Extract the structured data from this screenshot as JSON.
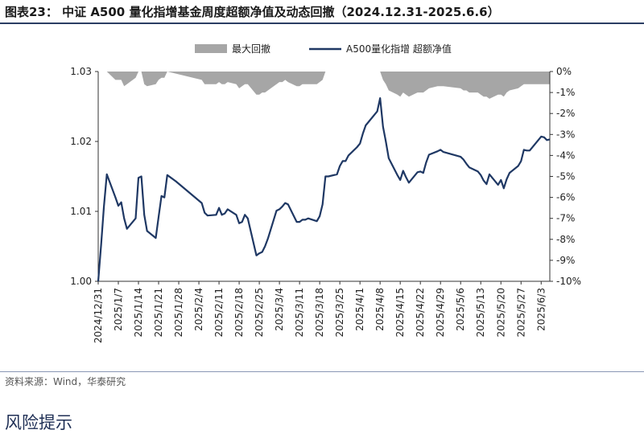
{
  "header": {
    "title": "图表23： 中证 A500 量化指增基金周度超额净值及动态回撤（2024.12.31-2025.6.6）"
  },
  "footer": {
    "source": "资料来源：Wind，华泰研究",
    "section_heading": "风险提示"
  },
  "colors": {
    "line": "#1f3864",
    "area": "#a6a6a6",
    "axis": "#333333",
    "rule": "#2b3d63"
  },
  "chart_data": {
    "type": "line",
    "legend_position": "top",
    "x_ticks": [
      "2024/12/31",
      "2025/1/7",
      "2025/1/14",
      "2025/1/21",
      "2025/1/28",
      "2025/2/4",
      "2025/2/11",
      "2025/2/18",
      "2025/2/25",
      "2025/3/4",
      "2025/3/11",
      "2025/3/18",
      "2025/3/25",
      "2025/4/1",
      "2025/4/8",
      "2025/4/15",
      "2025/4/22",
      "2025/4/29",
      "2025/5/6",
      "2025/5/13",
      "2025/5/20",
      "2025/5/27",
      "2025/6/3"
    ],
    "y_left": {
      "ticks": [
        "1.00",
        "1.01",
        "1.02",
        "1.03"
      ],
      "range": [
        1.0,
        1.03
      ]
    },
    "y_right": {
      "ticks": [
        "0%",
        "-1%",
        "-2%",
        "-3%",
        "-4%",
        "-5%",
        "-6%",
        "-7%",
        "-8%",
        "-9%",
        "-10%"
      ],
      "range": [
        -10,
        0
      ]
    },
    "series": [
      {
        "name": "A500量化指增 超额净值",
        "axis": "left",
        "x": [
          "2024/12/31",
          "2025/1/1",
          "2025/1/2",
          "2025/1/3",
          "2025/1/6",
          "2025/1/7",
          "2025/1/8",
          "2025/1/9",
          "2025/1/10",
          "2025/1/13",
          "2025/1/14",
          "2025/1/15",
          "2025/1/16",
          "2025/1/17",
          "2025/1/20",
          "2025/1/21",
          "2025/1/22",
          "2025/1/23",
          "2025/1/24",
          "2025/1/27",
          "2025/2/5",
          "2025/2/6",
          "2025/2/7",
          "2025/2/10",
          "2025/2/11",
          "2025/2/12",
          "2025/2/13",
          "2025/2/14",
          "2025/2/17",
          "2025/2/18",
          "2025/2/19",
          "2025/2/20",
          "2025/2/21",
          "2025/2/24",
          "2025/2/25",
          "2025/2/26",
          "2025/2/27",
          "2025/2/28",
          "2025/3/3",
          "2025/3/4",
          "2025/3/5",
          "2025/3/6",
          "2025/3/7",
          "2025/3/10",
          "2025/3/11",
          "2025/3/12",
          "2025/3/13",
          "2025/3/14",
          "2025/3/17",
          "2025/3/18",
          "2025/3/19",
          "2025/3/20",
          "2025/3/21",
          "2025/3/24",
          "2025/3/25",
          "2025/3/26",
          "2025/3/27",
          "2025/3/28",
          "2025/3/31",
          "2025/4/1",
          "2025/4/2",
          "2025/4/3",
          "2025/4/7",
          "2025/4/8",
          "2025/4/9",
          "2025/4/10",
          "2025/4/11",
          "2025/4/14",
          "2025/4/15",
          "2025/4/16",
          "2025/4/17",
          "2025/4/18",
          "2025/4/21",
          "2025/4/22",
          "2025/4/23",
          "2025/4/24",
          "2025/4/25",
          "2025/4/28",
          "2025/4/29",
          "2025/4/30",
          "2025/5/6",
          "2025/5/7",
          "2025/5/8",
          "2025/5/9",
          "2025/5/12",
          "2025/5/13",
          "2025/5/14",
          "2025/5/15",
          "2025/5/16",
          "2025/5/19",
          "2025/5/20",
          "2025/5/21",
          "2025/5/22",
          "2025/5/23",
          "2025/5/26",
          "2025/5/27",
          "2025/5/28",
          "2025/5/29",
          "2025/5/30",
          "2025/6/3",
          "2025/6/4",
          "2025/6/5",
          "2025/6/6"
        ],
        "y": [
          1.0,
          1.0052,
          1.0107,
          1.0153,
          1.012,
          1.0108,
          1.0113,
          1.009,
          1.0075,
          1.009,
          1.0148,
          1.015,
          1.0095,
          1.0072,
          1.0062,
          1.0092,
          1.0122,
          1.012,
          1.0152,
          1.0143,
          1.0112,
          1.0098,
          1.0094,
          1.0095,
          1.0105,
          1.0095,
          1.0097,
          1.0103,
          1.0095,
          1.0083,
          1.0085,
          1.0095,
          1.009,
          1.0037,
          1.004,
          1.0042,
          1.005,
          1.0061,
          1.0101,
          1.0103,
          1.0107,
          1.0112,
          1.011,
          1.0085,
          1.0085,
          1.0088,
          1.0088,
          1.009,
          1.0086,
          1.0093,
          1.011,
          1.015,
          1.015,
          1.0153,
          1.0165,
          1.0172,
          1.0172,
          1.018,
          1.0192,
          1.0197,
          1.0211,
          1.0223,
          1.0243,
          1.0262,
          1.0221,
          1.02,
          1.0176,
          1.0152,
          1.0145,
          1.0158,
          1.0149,
          1.0141,
          1.0156,
          1.0157,
          1.0155,
          1.017,
          1.0181,
          1.0186,
          1.0188,
          1.0185,
          1.0178,
          1.0174,
          1.0168,
          1.0163,
          1.0157,
          1.0152,
          1.0144,
          1.0139,
          1.0153,
          1.0138,
          1.0145,
          1.0133,
          1.0146,
          1.0155,
          1.0165,
          1.0172,
          1.0188,
          1.0187,
          1.0187,
          1.0207,
          1.0206,
          1.0202,
          1.0203
        ],
        "color": "#1f3864"
      },
      {
        "name": "最大回撤",
        "axis": "right",
        "type": "area",
        "x": [
          "2024/12/31",
          "2025/1/3",
          "2025/1/6",
          "2025/1/7",
          "2025/1/8",
          "2025/1/9",
          "2025/1/10",
          "2025/1/13",
          "2025/1/14",
          "2025/1/15",
          "2025/1/16",
          "2025/1/17",
          "2025/1/20",
          "2025/1/21",
          "2025/1/22",
          "2025/1/23",
          "2025/1/24",
          "2025/1/27",
          "2025/2/5",
          "2025/2/6",
          "2025/2/7",
          "2025/2/10",
          "2025/2/11",
          "2025/2/12",
          "2025/2/13",
          "2025/2/14",
          "2025/2/17",
          "2025/2/18",
          "2025/2/19",
          "2025/2/20",
          "2025/2/21",
          "2025/2/24",
          "2025/2/25",
          "2025/2/26",
          "2025/2/27",
          "2025/2/28",
          "2025/3/3",
          "2025/3/4",
          "2025/3/5",
          "2025/3/6",
          "2025/3/7",
          "2025/3/10",
          "2025/3/11",
          "2025/3/12",
          "2025/3/13",
          "2025/3/14",
          "2025/3/17",
          "2025/3/18",
          "2025/3/19",
          "2025/3/20",
          "2025/3/21",
          "2025/3/24",
          "2025/3/25",
          "2025/3/26",
          "2025/3/27",
          "2025/3/28",
          "2025/3/31",
          "2025/4/1",
          "2025/4/2",
          "2025/4/3",
          "2025/4/7",
          "2025/4/8",
          "2025/4/9",
          "2025/4/10",
          "2025/4/11",
          "2025/4/14",
          "2025/4/15",
          "2025/4/16",
          "2025/4/17",
          "2025/4/18",
          "2025/4/21",
          "2025/4/22",
          "2025/4/23",
          "2025/4/24",
          "2025/4/25",
          "2025/4/28",
          "2025/4/29",
          "2025/4/30",
          "2025/5/6",
          "2025/5/7",
          "2025/5/8",
          "2025/5/9",
          "2025/5/12",
          "2025/5/13",
          "2025/5/14",
          "2025/5/15",
          "2025/5/16",
          "2025/5/19",
          "2025/5/20",
          "2025/5/21",
          "2025/5/22",
          "2025/5/23",
          "2025/5/26",
          "2025/5/27",
          "2025/5/28",
          "2025/5/29",
          "2025/5/30",
          "2025/6/3",
          "2025/6/4",
          "2025/6/5",
          "2025/6/6"
        ],
        "y": [
          0,
          0,
          -0.4,
          -0.4,
          -0.4,
          -0.7,
          -0.6,
          -0.3,
          0,
          0,
          -0.6,
          -0.7,
          -0.6,
          -0.4,
          -0.3,
          -0.3,
          0,
          -0.1,
          -0.4,
          -0.6,
          -0.6,
          -0.6,
          -0.5,
          -0.6,
          -0.6,
          -0.5,
          -0.6,
          -0.8,
          -0.7,
          -0.6,
          -0.6,
          -1.1,
          -1.1,
          -1.0,
          -1.0,
          -0.9,
          -0.6,
          -0.5,
          -0.5,
          -0.4,
          -0.5,
          -0.7,
          -0.7,
          -0.6,
          -0.6,
          -0.6,
          -0.6,
          -0.5,
          -0.4,
          0,
          0,
          0,
          0,
          0,
          0,
          0,
          0,
          0,
          0,
          0,
          0,
          0,
          -0.4,
          -0.6,
          -0.9,
          -1.1,
          -1.2,
          -1.0,
          -1.1,
          -1.2,
          -1.0,
          -1.0,
          -1.0,
          -0.9,
          -0.8,
          -0.7,
          -0.7,
          -0.7,
          -0.8,
          -0.9,
          -0.9,
          -1.0,
          -1.0,
          -1.1,
          -1.2,
          -1.2,
          -1.3,
          -1.1,
          -1.1,
          -1.2,
          -1.0,
          -0.9,
          -0.8,
          -0.7,
          -0.6,
          -0.6,
          -0.6,
          -0.6,
          -0.6,
          -0.6,
          -0.6
        ],
        "color": "#a6a6a6"
      }
    ]
  }
}
